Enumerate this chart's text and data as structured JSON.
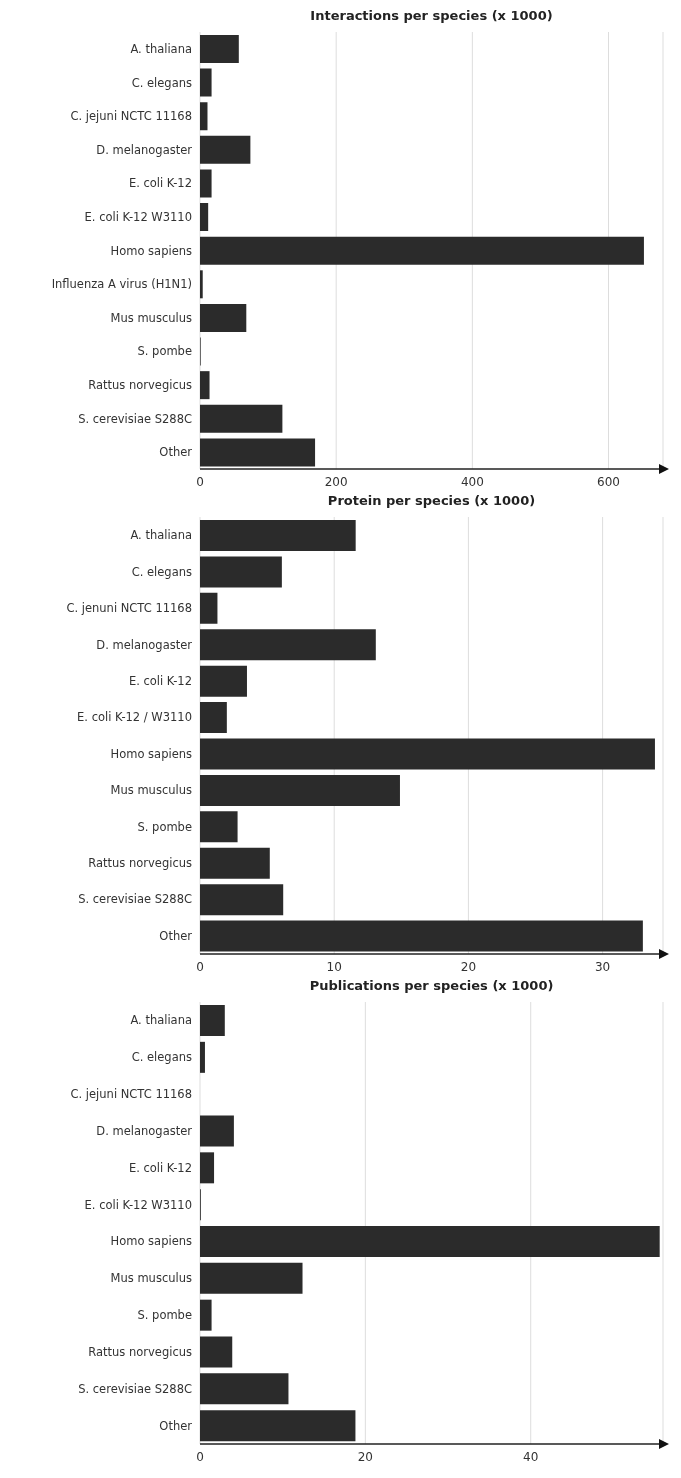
{
  "chart_data": [
    {
      "type": "bar",
      "orientation": "horizontal",
      "title": "Interactions per species (x 1000)",
      "categories": [
        "A. thaliana",
        "C. elegans",
        "C. jejuni NCTC 11168",
        "D. melanogaster",
        "E. coli K-12",
        "E. coli K-12 W3110",
        "Homo sapiens",
        "Influenza A virus (H1N1)",
        "Mus musculus",
        "S. pombe",
        "Rattus norvegicus",
        "S. cerevisiae S288C",
        "Other"
      ],
      "values": [
        57,
        17,
        11,
        74,
        17,
        12,
        652,
        4,
        68,
        1,
        14,
        121,
        169
      ],
      "color": "#2b2b2b",
      "xlim": [
        0,
        680
      ],
      "xticks": [
        0,
        200,
        400,
        600
      ],
      "grid": "x"
    },
    {
      "type": "bar",
      "orientation": "horizontal",
      "title": "Protein per species (x 1000)",
      "categories": [
        "A. thaliana",
        "C. elegans",
        "C. jenuni NCTC 11168",
        "D. melanogaster",
        "E. coli K-12",
        "E. coli K-12 / W3110",
        "Homo sapiens",
        "Mus musculus",
        "S. pombe",
        "Rattus norvegicus",
        "S. cerevisiae S288C",
        "Other"
      ],
      "values": [
        11.6,
        6.1,
        1.3,
        13.1,
        3.5,
        2.0,
        33.9,
        14.9,
        2.8,
        5.2,
        6.2,
        33.0
      ],
      "color": "#2b2b2b",
      "xlim": [
        0,
        34.5
      ],
      "xticks": [
        0,
        10,
        20,
        30
      ],
      "grid": "x"
    },
    {
      "type": "bar",
      "orientation": "horizontal",
      "title": "Publications per species (x 1000)",
      "categories": [
        "A. thaliana",
        "C. elegans",
        "C. jejuni NCTC 11168",
        "D. melanogaster",
        "E. coli K-12",
        "E. coli K-12 W3110",
        "Homo sapiens",
        "Mus musculus",
        "S. pombe",
        "Rattus norvegicus",
        "S. cerevisiae S288C",
        "Other"
      ],
      "values": [
        3.0,
        0.6,
        0,
        4.1,
        1.7,
        0.1,
        55.6,
        12.4,
        1.4,
        3.9,
        10.7,
        18.8
      ],
      "color": "#2b2b2b",
      "xlim": [
        0,
        56
      ],
      "xticks": [
        0,
        20,
        40
      ],
      "grid": "x"
    }
  ]
}
